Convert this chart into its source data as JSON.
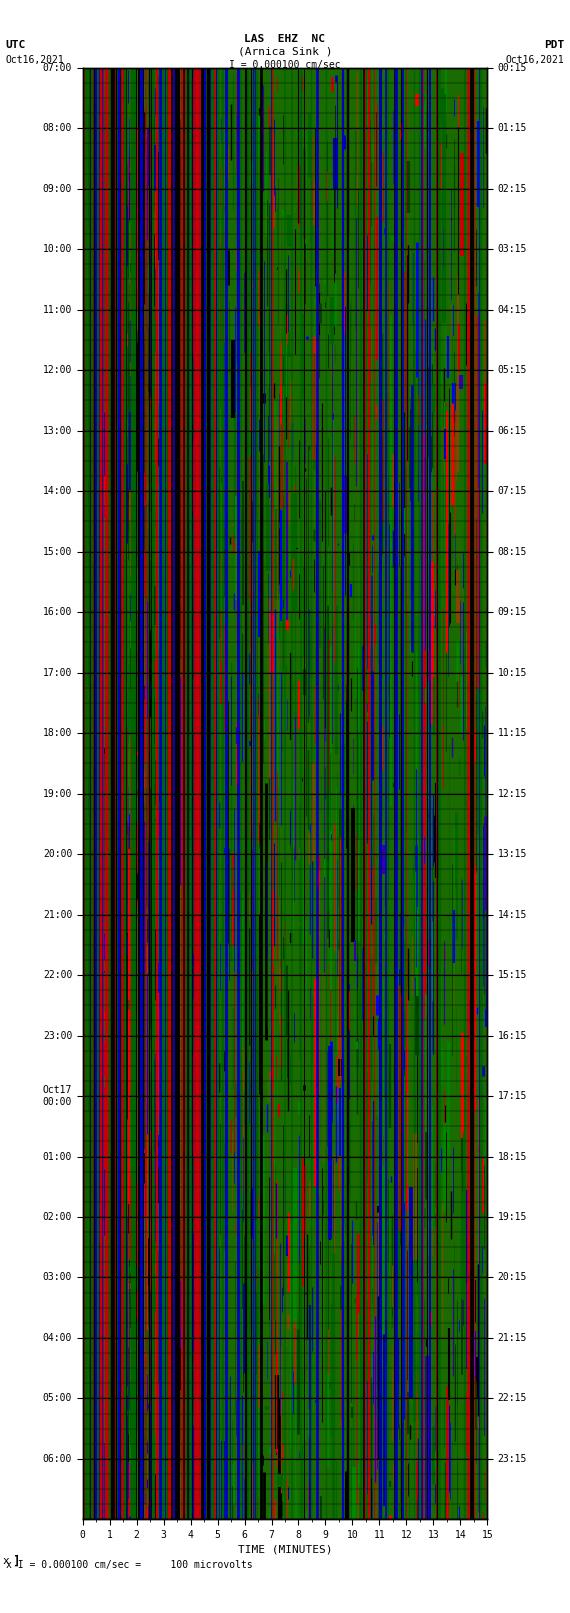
{
  "title_line1": "LAS  EHZ  NC",
  "title_line2": "(Arnica Sink )",
  "title_line3": "I = 0.000100 cm/sec",
  "xlabel": "TIME (MINUTES)",
  "footer_label": "x I = 0.000100 cm/sec =     100 microvolts",
  "bg_color": "#1a6b00",
  "white_bg": "#ffffff",
  "left_times": [
    "07:00",
    "08:00",
    "09:00",
    "10:00",
    "11:00",
    "12:00",
    "13:00",
    "14:00",
    "15:00",
    "16:00",
    "17:00",
    "18:00",
    "19:00",
    "20:00",
    "21:00",
    "22:00",
    "23:00",
    "Oct17\n00:00",
    "01:00",
    "02:00",
    "03:00",
    "04:00",
    "05:00",
    "06:00"
  ],
  "right_times": [
    "00:15",
    "01:15",
    "02:15",
    "03:15",
    "04:15",
    "05:15",
    "06:15",
    "07:15",
    "08:15",
    "09:15",
    "10:15",
    "11:15",
    "12:15",
    "13:15",
    "14:15",
    "15:15",
    "16:15",
    "17:15",
    "18:15",
    "19:15",
    "20:15",
    "21:15",
    "22:15",
    "23:15"
  ],
  "x_ticks": [
    0,
    1,
    2,
    3,
    4,
    5,
    6,
    7,
    8,
    9,
    10,
    11,
    12,
    13,
    14,
    15
  ],
  "figsize": [
    5.7,
    16.13
  ],
  "dpi": 100,
  "num_rows": 24,
  "seed": 42
}
